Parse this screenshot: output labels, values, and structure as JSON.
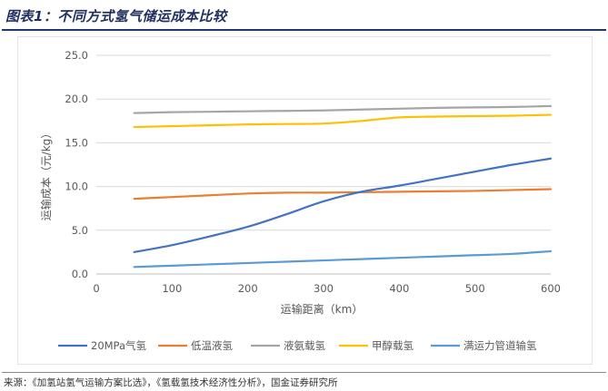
{
  "title": "图表1：不同方式氢气储运成本比较",
  "source": "来源：《加氢站氢气运输方案比选》，《氢载氢技术经济性分析》，国金证券研究所",
  "chart_data": {
    "type": "line",
    "xlabel": "运输距离（km）",
    "ylabel": "运输成本（元/kg）",
    "xlim": [
      0,
      600
    ],
    "ylim": [
      0,
      25
    ],
    "xticks": [
      0,
      100,
      200,
      300,
      400,
      500,
      600
    ],
    "yticks": [
      0.0,
      5.0,
      10.0,
      15.0,
      20.0,
      25.0
    ],
    "x_tick_labels": [
      "0",
      "100",
      "200",
      "300",
      "400",
      "500",
      "600"
    ],
    "y_tick_labels": [
      "0.0",
      "5.0",
      "10.0",
      "15.0",
      "20.0",
      "25.0"
    ],
    "grid": "horizontal",
    "legend_position": "bottom",
    "series": [
      {
        "name": "20MPa气氢",
        "color": "#4472c4",
        "x": [
          50,
          100,
          150,
          200,
          250,
          300,
          350,
          400,
          450,
          500,
          550,
          600
        ],
        "y": [
          2.5,
          3.3,
          4.3,
          5.4,
          6.8,
          8.3,
          9.4,
          10.1,
          10.9,
          11.7,
          12.5,
          13.2
        ]
      },
      {
        "name": "低温液氢",
        "color": "#ed7d31",
        "x": [
          50,
          100,
          150,
          200,
          250,
          300,
          350,
          400,
          450,
          500,
          550,
          600
        ],
        "y": [
          8.6,
          8.8,
          9.0,
          9.2,
          9.3,
          9.3,
          9.35,
          9.4,
          9.45,
          9.5,
          9.6,
          9.7
        ]
      },
      {
        "name": "液氨载氢",
        "color": "#a5a5a5",
        "x": [
          50,
          100,
          150,
          200,
          250,
          300,
          350,
          400,
          450,
          500,
          550,
          600
        ],
        "y": [
          18.4,
          18.5,
          18.55,
          18.6,
          18.65,
          18.7,
          18.8,
          18.9,
          19.0,
          19.05,
          19.1,
          19.2
        ]
      },
      {
        "name": "甲醇载氢",
        "color": "#ffc000",
        "x": [
          50,
          100,
          150,
          200,
          250,
          300,
          350,
          400,
          450,
          500,
          550,
          600
        ],
        "y": [
          16.8,
          16.9,
          17.0,
          17.1,
          17.15,
          17.2,
          17.5,
          17.9,
          18.0,
          18.05,
          18.1,
          18.2
        ]
      },
      {
        "name": "满运力管道输氢",
        "color": "#5b9bd5",
        "x": [
          50,
          100,
          150,
          200,
          250,
          300,
          350,
          400,
          450,
          500,
          550,
          600
        ],
        "y": [
          0.8,
          0.95,
          1.1,
          1.25,
          1.4,
          1.55,
          1.7,
          1.85,
          2.0,
          2.15,
          2.3,
          2.6
        ]
      }
    ]
  }
}
